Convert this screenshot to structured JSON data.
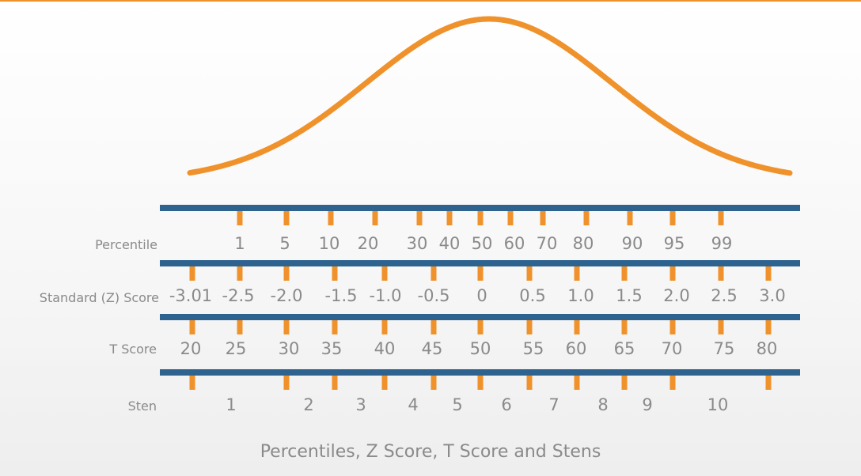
{
  "caption": "Percentiles, Z Score, T Score and Stens",
  "colors": {
    "curve": "#f0922b",
    "bar": "#2e6390",
    "tick": "#f0922b",
    "text": "#8a8a8a",
    "top_rule": "#f0922b"
  },
  "rows": [
    {
      "label": "Percentile",
      "values": [
        "1",
        "5",
        "10",
        "20",
        "30",
        "40",
        "50",
        "60",
        "70",
        "80",
        "90",
        "95",
        "99"
      ]
    },
    {
      "label": "Standard (Z) Score",
      "values": [
        "-3.01",
        "-2.5",
        "-2.0",
        "-1.5",
        "-1.0",
        "-0.5",
        "0",
        "0.5",
        "1.0",
        "1.5",
        "2.0",
        "2.5",
        "3.0"
      ]
    },
    {
      "label": "T Score",
      "values": [
        "20",
        "25",
        "30",
        "35",
        "40",
        "45",
        "50",
        "55",
        "60",
        "65",
        "70",
        "75",
        "80"
      ]
    },
    {
      "label": "Sten",
      "values": [
        "1",
        "2",
        "3",
        "4",
        "5",
        "6",
        "7",
        "8",
        "9",
        "10"
      ]
    }
  ]
}
